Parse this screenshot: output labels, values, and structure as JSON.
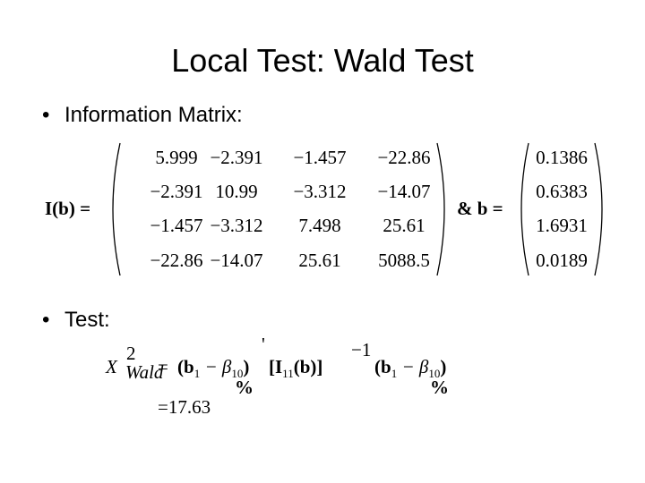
{
  "title": "Local Test: Wald Test",
  "bullets": [
    "Information Matrix:",
    "Test:"
  ],
  "matrix": {
    "lhs": "I(b) =",
    "rows": [
      [
        "5.999",
        "−2.391",
        "−1.457",
        "−22.86"
      ],
      [
        "−2.391",
        "10.99",
        "−3.312",
        "−14.07"
      ],
      [
        "−1.457",
        "−3.312",
        "7.498",
        "25.61"
      ],
      [
        "−22.86",
        "−14.07",
        "25.61",
        "5088.5"
      ]
    ]
  },
  "vector": {
    "lhs": "&  b =",
    "values": [
      "0.1386",
      "0.6383",
      "1.6931",
      "0.0189"
    ]
  },
  "formula": {
    "chi": "X",
    "chi_sup": "2",
    "chi_sub": "Wald",
    "eq": "=",
    "open1": "(b",
    "sub_b1": "1",
    "minus1": " − β",
    "sub_beta1": "10",
    "close1": ")",
    "prime": "'",
    "bracket": "[I",
    "sub_I": "11",
    "mid": "(b)]",
    "inv": "−1",
    "open2": "(b",
    "sub_b2": "1",
    "minus2": " − β",
    "sub_beta2": "10",
    "close2": ")",
    "tilde1": "%",
    "tilde2": "%",
    "result": "=17.63"
  }
}
